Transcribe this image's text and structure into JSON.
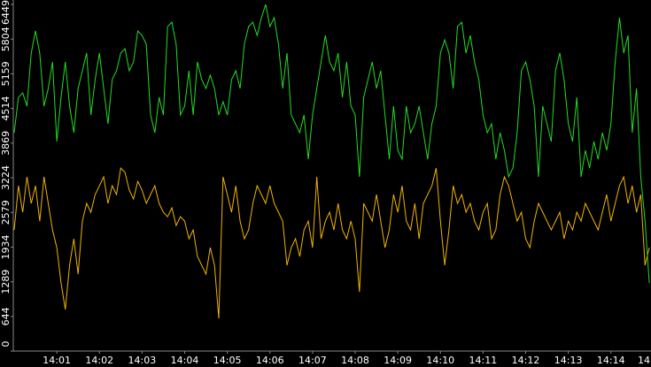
{
  "chart_data": {
    "type": "line",
    "x": [
      0,
      0.1,
      0.2,
      0.3,
      0.4,
      0.5,
      0.6,
      0.7,
      0.8,
      0.9,
      1,
      1.1,
      1.2,
      1.3,
      1.4,
      1.5,
      1.6,
      1.7,
      1.8,
      1.9,
      2,
      2.1,
      2.2,
      2.3,
      2.4,
      2.5,
      2.6,
      2.7,
      2.8,
      2.9,
      3,
      3.1,
      3.2,
      3.3,
      3.4,
      3.5,
      3.6,
      3.7,
      3.8,
      3.9,
      4,
      4.1,
      4.2,
      4.3,
      4.4,
      4.5,
      4.6,
      4.7,
      4.8,
      4.9,
      5,
      5.1,
      5.2,
      5.3,
      5.4,
      5.5,
      5.6,
      5.7,
      5.8,
      5.9,
      6,
      6.1,
      6.2,
      6.3,
      6.4,
      6.5,
      6.6,
      6.7,
      6.8,
      6.9,
      7,
      7.1,
      7.2,
      7.3,
      7.4,
      7.5,
      7.6,
      7.7,
      7.8,
      7.9,
      8,
      8.1,
      8.2,
      8.3,
      8.4,
      8.5,
      8.6,
      8.7,
      8.8,
      8.9,
      9,
      9.1,
      9.2,
      9.3,
      9.4,
      9.5,
      9.6,
      9.7,
      9.8,
      9.9,
      10,
      10.1,
      10.2,
      10.3,
      10.4,
      10.5,
      10.6,
      10.7,
      10.8,
      10.9,
      11,
      11.1,
      11.2,
      11.3,
      11.4,
      11.5,
      11.6,
      11.7,
      11.8,
      11.9,
      12,
      12.1,
      12.2,
      12.3,
      12.4,
      12.5,
      12.6,
      12.7,
      12.8,
      12.9,
      13,
      13.1,
      13.2,
      13.3,
      13.4,
      13.5,
      13.6,
      13.7,
      13.8,
      13.9,
      14,
      14.1,
      14.2,
      14.3,
      14.4,
      14.5,
      14.6,
      14.7,
      14.8,
      14.9
    ],
    "series": [
      {
        "color": "#f0b400",
        "values": [
          2254,
          3076,
          2583,
          3241,
          2747,
          3076,
          2418,
          3241,
          2747,
          2254,
          1925,
          1267,
          773,
          1596,
          2089,
          1431,
          2418,
          2747,
          2583,
          2912,
          3076,
          3241,
          2747,
          3076,
          2912,
          3405,
          3323,
          2994,
          2829,
          3158,
          2994,
          2747,
          2912,
          3076,
          2747,
          2583,
          2500,
          2665,
          2336,
          2500,
          2418,
          2089,
          2254,
          1760,
          1596,
          1431,
          1925,
          1596,
          609,
          3241,
          2912,
          2583,
          3076,
          2418,
          2089,
          2254,
          2747,
          3076,
          2912,
          2747,
          3076,
          2747,
          2583,
          2418,
          1596,
          1925,
          2089,
          1760,
          2254,
          2418,
          1925,
          3241,
          2089,
          2418,
          2583,
          2254,
          2747,
          2254,
          2089,
          2418,
          2089,
          1102,
          2747,
          2583,
          2418,
          2912,
          2418,
          1925,
          2254,
          2912,
          2583,
          3076,
          2418,
          2254,
          2747,
          2089,
          2747,
          2912,
          3076,
          3405,
          2418,
          1596,
          2254,
          3076,
          2747,
          2912,
          2583,
          2747,
          2418,
          2254,
          2583,
          2747,
          2089,
          2254,
          2912,
          3241,
          3076,
          2747,
          2418,
          2583,
          2089,
          1925,
          2418,
          2747,
          2583,
          2418,
          2254,
          2418,
          2583,
          2089,
          2418,
          2254,
          2583,
          2418,
          2747,
          2583,
          2418,
          2254,
          2583,
          2912,
          2418,
          2747,
          3076,
          3241,
          2747,
          3076,
          2583,
          2912,
          1596,
          1925
        ]
      },
      {
        "color": "#22dd22",
        "values": [
          4063,
          4721,
          4803,
          4557,
          5544,
          5955,
          5544,
          4557,
          4886,
          5379,
          3899,
          4721,
          5379,
          4557,
          4063,
          4886,
          5215,
          5544,
          4392,
          5050,
          5544,
          4886,
          4228,
          5050,
          5215,
          5544,
          5626,
          5215,
          5379,
          5955,
          5873,
          5708,
          4392,
          4063,
          4721,
          4392,
          6037,
          6119,
          5708,
          4392,
          4557,
          5215,
          4392,
          5379,
          5050,
          4886,
          5132,
          4886,
          4392,
          4639,
          4392,
          5050,
          5215,
          4886,
          5708,
          6037,
          6119,
          5873,
          6202,
          6449,
          6037,
          6202,
          5708,
          4886,
          5544,
          4392,
          4228,
          4063,
          4392,
          3570,
          4392,
          4886,
          5379,
          5873,
          5379,
          5215,
          5544,
          4721,
          5379,
          4557,
          4392,
          3241,
          4721,
          5050,
          5379,
          4886,
          5215,
          4392,
          3570,
          4557,
          3734,
          3570,
          4557,
          4063,
          4228,
          4557,
          4063,
          3570,
          4228,
          4557,
          5544,
          5790,
          5544,
          4886,
          6037,
          6119,
          5544,
          5873,
          5379,
          5050,
          4392,
          4063,
          4228,
          3570,
          4063,
          3734,
          3241,
          3405,
          4063,
          5215,
          5379,
          5050,
          4557,
          3241,
          4557,
          4228,
          3899,
          5215,
          5544,
          5050,
          4228,
          3899,
          4721,
          3241,
          3734,
          3405,
          3899,
          3570,
          4063,
          3734,
          4228,
          5379,
          6202,
          5544,
          5873,
          4063,
          4886,
          3241,
          2418,
          1267
        ]
      }
    ],
    "xlim": [
      0,
      14.94
    ],
    "xticks": [
      {
        "value": 1,
        "label": "14:01"
      },
      {
        "value": 2,
        "label": "14:02"
      },
      {
        "value": 3,
        "label": "14:03"
      },
      {
        "value": 4,
        "label": "14:04"
      },
      {
        "value": 5,
        "label": "14:05"
      },
      {
        "value": 6,
        "label": "14:06"
      },
      {
        "value": 7,
        "label": "14:07"
      },
      {
        "value": 8,
        "label": "14:08"
      },
      {
        "value": 9,
        "label": "14:09"
      },
      {
        "value": 10,
        "label": "14:10"
      },
      {
        "value": 11,
        "label": "14:11"
      },
      {
        "value": 12,
        "label": "14:12"
      },
      {
        "value": 13,
        "label": "14:13"
      },
      {
        "value": 14,
        "label": "14:14"
      },
      {
        "value": 15,
        "label": "14"
      }
    ],
    "ylim": [
      0,
      6449
    ],
    "yticks": [
      0,
      644,
      1289,
      1934,
      2579,
      3224,
      3869,
      4514,
      5159,
      5804,
      6449
    ],
    "grid": false
  }
}
